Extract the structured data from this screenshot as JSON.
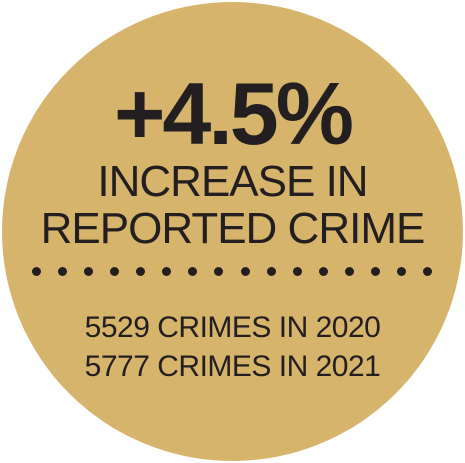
{
  "badge": {
    "color": "#d7b46c",
    "headline": "+4.5%",
    "subheading_line1": "INCREASE IN",
    "subheading_line2": "REPORTED CRIME",
    "stat_line1": "5529 CRIMES IN 2020",
    "stat_line2": "5777 CRIMES IN 2021"
  }
}
